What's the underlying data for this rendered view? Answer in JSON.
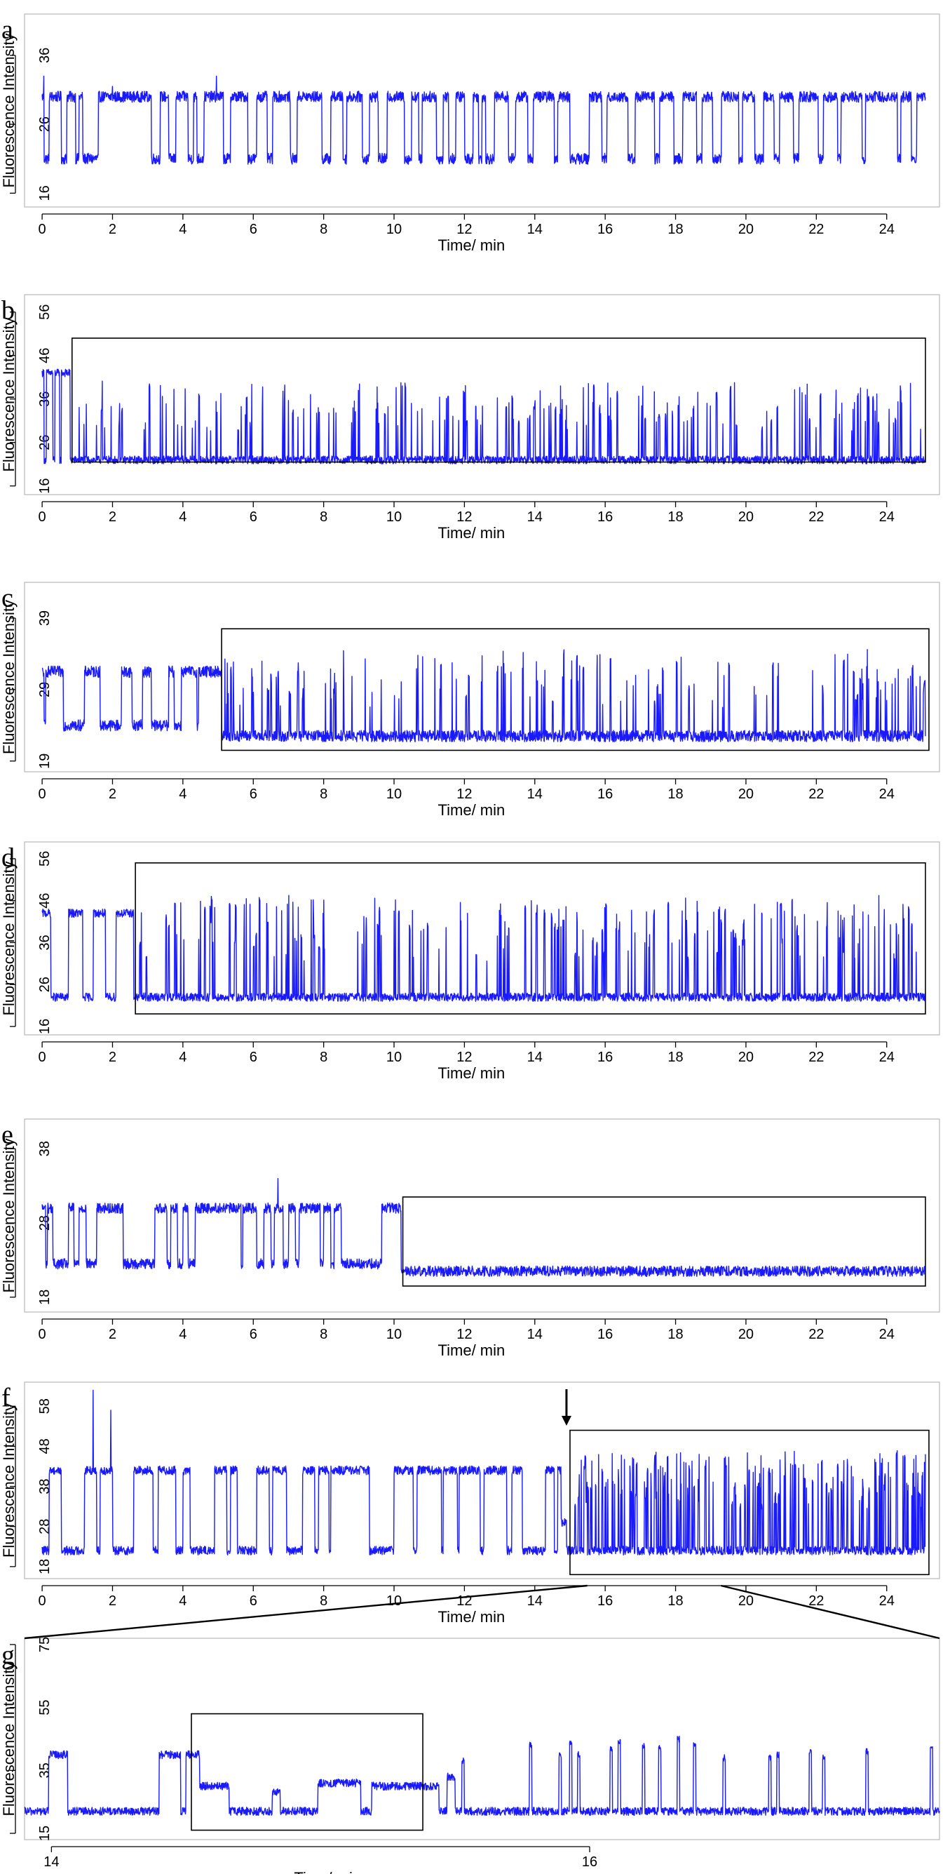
{
  "colors": {
    "trace": "#1a1aff",
    "box": "#000000"
  },
  "chart_data": [
    {
      "id": "a",
      "type": "line",
      "panel_label": "a",
      "xlabel": "Time/ min",
      "ylabel": "Fluorescence Intensity",
      "xticks": [
        0,
        2,
        4,
        6,
        8,
        10,
        12,
        14,
        16,
        18,
        20,
        22,
        24
      ],
      "yticks": [
        16,
        26,
        36
      ],
      "xlim": [
        -0.5,
        25.5
      ],
      "ylim": [
        14,
        42
      ],
      "series": [
        {
          "t_start": 0,
          "t_end": 25.1,
          "levels": {
            "high": 30,
            "low": 21
          },
          "noise": 0.8,
          "pattern": "two-state switching throughout",
          "low_dwells_min": [
            [
              0.05,
              0.2
            ],
            [
              0.55,
              0.7
            ],
            [
              0.95,
              1.05
            ],
            [
              1.15,
              1.6
            ],
            [
              3.1,
              3.35
            ],
            [
              3.6,
              3.8
            ],
            [
              4.15,
              4.3
            ],
            [
              4.4,
              4.6
            ],
            [
              5.15,
              5.35
            ],
            [
              5.85,
              6.1
            ],
            [
              6.4,
              6.55
            ],
            [
              7.05,
              7.25
            ],
            [
              7.95,
              8.2
            ],
            [
              8.55,
              8.65
            ],
            [
              9.1,
              9.3
            ],
            [
              9.55,
              9.8
            ],
            [
              10.3,
              10.5
            ],
            [
              10.7,
              10.8
            ],
            [
              11.2,
              11.4
            ],
            [
              11.55,
              11.75
            ],
            [
              12.0,
              12.25
            ],
            [
              12.4,
              12.5
            ],
            [
              12.6,
              12.85
            ],
            [
              13.25,
              13.45
            ],
            [
              13.8,
              13.95
            ],
            [
              14.55,
              14.65
            ],
            [
              15.0,
              15.55
            ],
            [
              15.9,
              16.05
            ],
            [
              16.65,
              16.85
            ],
            [
              17.4,
              17.55
            ],
            [
              17.95,
              18.2
            ],
            [
              18.6,
              18.75
            ],
            [
              19.05,
              19.3
            ],
            [
              19.8,
              19.9
            ],
            [
              20.25,
              20.5
            ],
            [
              20.8,
              20.95
            ],
            [
              21.35,
              21.5
            ],
            [
              22.05,
              22.2
            ],
            [
              22.6,
              22.7
            ],
            [
              23.3,
              23.4
            ],
            [
              24.3,
              24.4
            ],
            [
              24.7,
              24.85
            ]
          ],
          "high_segments": [
            {
              "from": 0.0,
              "to": 25.1,
              "value": 30
            }
          ],
          "spikes": [
            [
              0.05,
              33
            ],
            [
              4.95,
              33
            ],
            [
              2.0,
              31.5
            ]
          ]
        }
      ]
    },
    {
      "id": "b",
      "type": "line",
      "panel_label": "b",
      "xlabel": "Time/ min",
      "ylabel": "Fluorescence Intensity",
      "xticks": [
        0,
        2,
        4,
        6,
        8,
        10,
        12,
        14,
        16,
        18,
        20,
        22,
        24
      ],
      "yticks": [
        16,
        26,
        36,
        46,
        56
      ],
      "xlim": [
        -0.5,
        25.5
      ],
      "ylim": [
        14,
        60
      ],
      "series": [
        {
          "t_start": 0,
          "t_end": 25.1,
          "levels": {
            "high": 42,
            "low": 22
          },
          "noise": 0.9,
          "pattern": "high state until ~0.8 min, then low baseline with brief bursts",
          "early_high_until": 0.8,
          "early_low_dwells_min": [
            [
              0.05,
              0.12
            ],
            [
              0.3,
              0.36
            ],
            [
              0.5,
              0.55
            ]
          ],
          "burst_region_from": 0.85,
          "burst_levels": [
            29,
            40
          ],
          "burst_count": 210
        }
      ],
      "box": {
        "x0": 0.85,
        "x1": 25.1,
        "y0": 21.5,
        "y1": 50
      }
    },
    {
      "id": "c",
      "type": "line",
      "panel_label": "c",
      "xlabel": "Time/ min",
      "ylabel": "Fluorescence Intensity",
      "xticks": [
        0,
        2,
        4,
        6,
        8,
        10,
        12,
        14,
        16,
        18,
        20,
        22,
        24
      ],
      "yticks": [
        19,
        29,
        39
      ],
      "xlim": [
        -0.5,
        25.5
      ],
      "ylim": [
        17.5,
        44
      ],
      "series": [
        {
          "t_start": 0,
          "t_end": 25.1,
          "levels": {
            "high": 31.5,
            "low": 22.5
          },
          "noise": 0.8,
          "pattern": "switching until ~5.1 min, then low baseline with brief bursts",
          "early_until": 5.1,
          "low_dwells_min": [
            [
              0.05,
              0.1
            ],
            [
              0.6,
              1.2
            ],
            [
              1.65,
              2.25
            ],
            [
              2.55,
              2.85
            ],
            [
              3.1,
              3.6
            ],
            [
              3.75,
              3.95
            ],
            [
              4.4,
              4.45
            ]
          ],
          "early_low_value": 24,
          "burst_region_from": 5.15,
          "burst_levels": [
            27,
            34
          ],
          "burst_count": 150
        }
      ],
      "box": {
        "x0": 5.1,
        "x1": 25.2,
        "y0": 20.5,
        "y1": 37.5
      }
    },
    {
      "id": "d",
      "type": "line",
      "panel_label": "d",
      "xlabel": "Time/ min",
      "ylabel": "Fluorescence Intensity",
      "xticks": [
        0,
        2,
        4,
        6,
        8,
        10,
        12,
        14,
        16,
        18,
        20,
        22,
        24
      ],
      "yticks": [
        16,
        26,
        36,
        46,
        56
      ],
      "xlim": [
        -0.5,
        25.5
      ],
      "ylim": [
        14,
        60
      ],
      "series": [
        {
          "t_start": 0,
          "t_end": 25.1,
          "levels": {
            "high": 43,
            "low": 23
          },
          "noise": 1.0,
          "pattern": "switching until ~2.6 min, then low baseline with brief bursts",
          "early_until": 2.6,
          "low_dwells_min": [
            [
              0.25,
              0.75
            ],
            [
              1.15,
              1.45
            ],
            [
              1.8,
              2.1
            ]
          ],
          "burst_region_from": 2.7,
          "burst_levels": [
            32,
            47
          ],
          "burst_count": 230
        }
      ],
      "box": {
        "x0": 2.65,
        "x1": 25.1,
        "y0": 19,
        "y1": 55
      }
    },
    {
      "id": "e",
      "type": "line",
      "panel_label": "e",
      "xlabel": "Time/ min",
      "ylabel": "Fluorescence Intensity",
      "xticks": [
        0,
        2,
        4,
        6,
        8,
        10,
        12,
        14,
        16,
        18,
        20,
        22,
        24
      ],
      "yticks": [
        18,
        28,
        38
      ],
      "xlim": [
        -0.5,
        25.5
      ],
      "ylim": [
        16,
        42
      ],
      "series": [
        {
          "t_start": 0,
          "t_end": 25.1,
          "levels": {
            "high": 30,
            "low": 22.5
          },
          "noise": 0.7,
          "pattern": "switching until ~10.2 min, then flat low baseline",
          "early_until": 10.2,
          "low_dwells_min": [
            [
              0.1,
              0.15
            ],
            [
              0.3,
              0.75
            ],
            [
              0.9,
              1.05
            ],
            [
              1.25,
              1.55
            ],
            [
              2.3,
              3.2
            ],
            [
              3.55,
              3.65
            ],
            [
              3.85,
              4.0
            ],
            [
              4.15,
              4.35
            ],
            [
              5.65,
              5.7
            ],
            [
              6.1,
              6.3
            ],
            [
              6.5,
              6.6
            ],
            [
              6.85,
              7.0
            ],
            [
              7.2,
              7.3
            ],
            [
              7.9,
              8.0
            ],
            [
              8.2,
              8.3
            ],
            [
              8.5,
              9.65
            ]
          ],
          "late_low_value": 21.5,
          "spikes": [
            [
              6.7,
              34
            ]
          ]
        }
      ],
      "box": {
        "x0": 10.25,
        "x1": 25.1,
        "y0": 19.5,
        "y1": 31.5
      }
    },
    {
      "id": "f",
      "type": "line",
      "panel_label": "f",
      "xlabel": "Time/ min",
      "ylabel": "Fluorescence Intensity",
      "xticks": [
        0,
        2,
        4,
        6,
        8,
        10,
        12,
        14,
        16,
        18,
        20,
        22,
        24
      ],
      "yticks": [
        18,
        28,
        38,
        48,
        58
      ],
      "xlim": [
        -0.5,
        25.5
      ],
      "ylim": [
        15,
        64
      ],
      "series": [
        {
          "t_start": 0,
          "t_end": 25.1,
          "levels": {
            "high": 42,
            "low": 22
          },
          "noise": 1.1,
          "pattern": "two-state switching until ~14.9 min, then low baseline with brief bursts",
          "early_until": 14.9,
          "low_dwells_min": [
            [
              0.0,
              0.2
            ],
            [
              0.55,
              1.2
            ],
            [
              1.55,
              1.65
            ],
            [
              2.0,
              2.6
            ],
            [
              3.15,
              3.3
            ],
            [
              3.8,
              4.0
            ],
            [
              4.2,
              4.9
            ],
            [
              5.25,
              5.35
            ],
            [
              5.55,
              6.1
            ],
            [
              6.45,
              6.55
            ],
            [
              6.95,
              7.4
            ],
            [
              7.75,
              7.85
            ],
            [
              8.15,
              8.2
            ],
            [
              9.3,
              10.0
            ],
            [
              10.55,
              10.65
            ],
            [
              11.35,
              11.4
            ],
            [
              11.8,
              11.85
            ],
            [
              12.45,
              12.55
            ],
            [
              13.2,
              13.35
            ],
            [
              13.65,
              14.3
            ],
            [
              14.55,
              14.65
            ]
          ],
          "plateaus": [
            [
              14.75,
              14.9,
              29
            ]
          ],
          "spikes": [
            [
              1.45,
              62
            ],
            [
              1.95,
              57
            ]
          ],
          "burst_region_from": 15.0,
          "burst_levels": [
            33,
            47
          ],
          "burst_count": 200
        }
      ],
      "box": {
        "x0": 15.0,
        "x1": 25.2,
        "y0": 16,
        "y1": 52
      },
      "arrow_at_min": 14.9
    },
    {
      "id": "g",
      "type": "line",
      "panel_label": "g",
      "xlabel": "Time/ min",
      "ylabel": "Fluorescence Intensity",
      "xticks": [
        14,
        16
      ],
      "yticks": [
        15,
        35,
        55,
        75
      ],
      "xlim": [
        13.9,
        17.3
      ],
      "ylim": [
        13,
        77
      ],
      "series": [
        {
          "t_start": 13.9,
          "t_end": 17.3,
          "levels": {
            "baseline": 22
          },
          "noise": 1.3,
          "segments": [
            [
              13.9,
              13.99,
              22
            ],
            [
              13.99,
              14.06,
              40
            ],
            [
              14.06,
              14.4,
              22
            ],
            [
              14.4,
              14.48,
              40
            ],
            [
              14.48,
              14.5,
              22
            ],
            [
              14.5,
              14.55,
              40
            ],
            [
              14.55,
              14.66,
              30
            ],
            [
              14.66,
              14.82,
              22
            ],
            [
              14.82,
              14.85,
              28
            ],
            [
              14.85,
              14.99,
              22
            ],
            [
              14.99,
              15.15,
              31
            ],
            [
              15.15,
              15.19,
              22
            ],
            [
              15.19,
              15.44,
              30
            ],
            [
              15.44,
              15.47,
              22
            ],
            [
              15.47,
              15.5,
              33
            ],
            [
              15.5,
              17.3,
              22
            ]
          ],
          "bursts": [
            [
              15.53,
              40
            ],
            [
              15.78,
              45
            ],
            [
              15.89,
              42
            ],
            [
              15.93,
              46
            ],
            [
              15.96,
              42
            ],
            [
              16.08,
              44
            ],
            [
              16.11,
              46
            ],
            [
              16.2,
              45
            ],
            [
              16.26,
              44
            ],
            [
              16.33,
              47
            ],
            [
              16.39,
              45
            ],
            [
              16.5,
              41
            ],
            [
              16.67,
              41
            ],
            [
              16.7,
              42
            ],
            [
              16.82,
              43
            ],
            [
              16.87,
              41
            ],
            [
              17.03,
              43
            ],
            [
              17.27,
              44
            ]
          ]
        }
      ],
      "box": {
        "x0": 14.52,
        "x1": 15.38,
        "y0": 16,
        "y1": 53
      },
      "zoom_source_range": [
        13.3,
        17.3
      ]
    }
  ]
}
